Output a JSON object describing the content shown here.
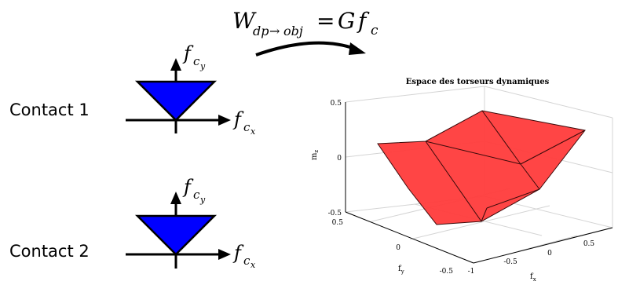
{
  "equation": {
    "lhs_symbol": "W",
    "lhs_subscript_dp": "dp",
    "lhs_subscript_arrow": "→",
    "lhs_subscript_obj": "obj",
    "equals": "=",
    "rhs_G": "G",
    "rhs_f": "f",
    "rhs_sub": "c"
  },
  "contacts": [
    {
      "label": "Contact 1",
      "force_y_main": "f",
      "force_y_sub": "c",
      "force_y_subsub": "y",
      "force_x_main": "f",
      "force_x_sub": "c",
      "force_x_subsub": "x"
    },
    {
      "label": "Contact 2",
      "force_y_main": "f",
      "force_y_sub": "c",
      "force_y_subsub": "y",
      "force_x_main": "f",
      "force_x_sub": "c",
      "force_x_subsub": "x"
    }
  ],
  "plot": {
    "title": "Espace des torseurs dynamiques",
    "zlabel_main": "m",
    "zlabel_sub": "z",
    "ylabel_main": "f",
    "ylabel_sub": "y",
    "xlabel_main": "f",
    "xlabel_sub": "x",
    "z_ticks": [
      "0.5",
      "0",
      "-0.5"
    ],
    "y_ticks": [
      "0.5",
      "0",
      "-0.5"
    ],
    "x_ticks": [
      "-1",
      "-0.5",
      "0",
      "0.5"
    ],
    "polytope_color": "#ff3b3b",
    "edge_color": "#3a0a0a"
  },
  "colors": {
    "triangle_fill": "#0000ff",
    "line": "#000000"
  }
}
